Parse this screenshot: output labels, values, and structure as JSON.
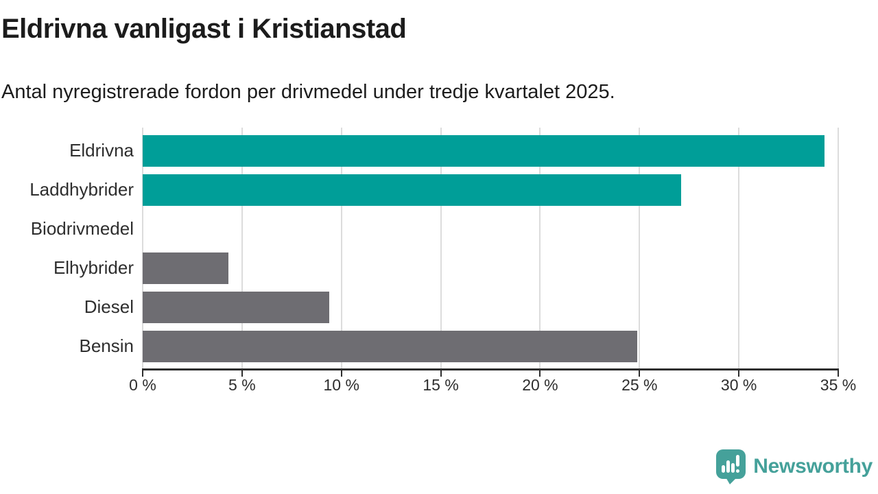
{
  "title": "Eldrivna vanligast i Kristianstad",
  "subtitle": "Antal nyregistrerade fordon per drivmedel under tredje kvartalet 2025.",
  "chart_data": {
    "type": "bar",
    "orientation": "horizontal",
    "title": "Eldrivna vanligast i Kristianstad",
    "subtitle": "Antal nyregistrerade fordon per drivmedel under tredje kvartalet 2025.",
    "categories": [
      "Eldrivna",
      "Laddhybrider",
      "Biodrivmedel",
      "Elhybrider",
      "Diesel",
      "Bensin"
    ],
    "values": [
      34.3,
      27.1,
      0,
      4.3,
      9.4,
      24.9
    ],
    "unit": "%",
    "xlim": [
      0,
      35
    ],
    "x_ticks": [
      0,
      5,
      10,
      15,
      20,
      25,
      30,
      35
    ],
    "x_tick_labels": [
      "0 %",
      "5 %",
      "10 %",
      "15 %",
      "20 %",
      "25 %",
      "30 %",
      "35 %"
    ],
    "bar_colors": [
      "#009e98",
      "#009e98",
      "#6e6d72",
      "#6e6d72",
      "#6e6d72",
      "#6e6d72"
    ],
    "highlight_color": "#009e98",
    "default_color": "#6e6d72",
    "gridline_color": "#dcdcdc",
    "axis_color": "#2e2e2e",
    "grid": true,
    "legend": false
  },
  "footer": {
    "brand": "Newsworthy",
    "brand_color": "#45a19a",
    "logo_icon": "bar-chart-speech-bubble-icon"
  }
}
